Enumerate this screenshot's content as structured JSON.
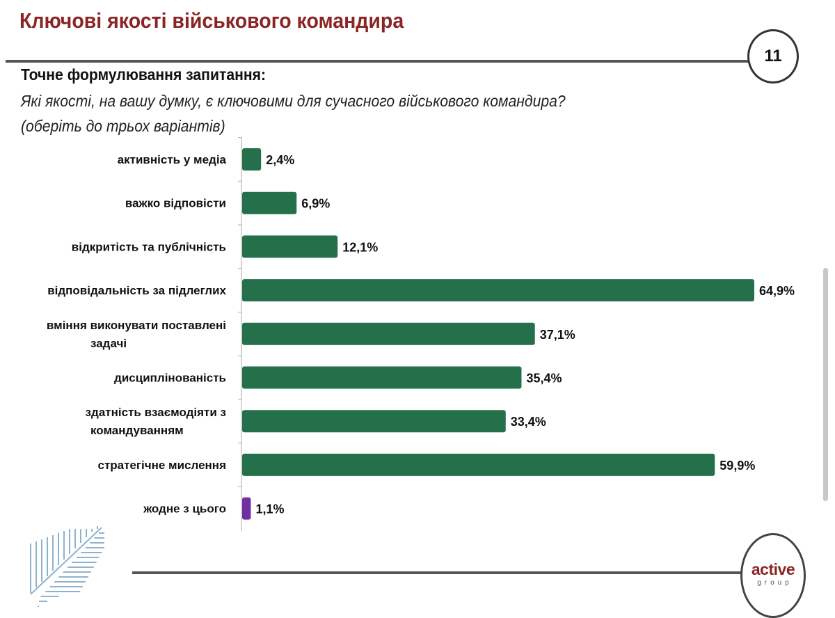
{
  "header": {
    "title": "Ключові якості військового командира",
    "page_number": "11"
  },
  "question": {
    "heading": "Точне формулювання запитання:",
    "text": "Які якості, на вашу думку, є ключовими для сучасного військового командира?",
    "note": "(оберіть до трьох варіантів)"
  },
  "chart_data": {
    "type": "bar",
    "orientation": "horizontal",
    "unit": "%",
    "xlim": [
      0,
      70
    ],
    "grid": false,
    "categories": [
      "активність у медіа",
      "важко відповісти",
      "відкритість та публічність",
      "відповідальність за підлеглих",
      "вміння виконувати поставлені задачі",
      "дисциплінованість",
      "здатність взаємодіяти з командуванням",
      "стратегічне мислення",
      "жодне з цього"
    ],
    "values": [
      2.4,
      6.9,
      12.1,
      64.9,
      37.1,
      35.4,
      33.4,
      59.9,
      1.1
    ],
    "data_labels": [
      "2,4%",
      "6,9%",
      "12,1%",
      "64,9%",
      "37,1%",
      "35,4%",
      "33,4%",
      "59,9%",
      "1,1%"
    ],
    "colors": [
      "#24704a",
      "#24704a",
      "#24704a",
      "#24704a",
      "#24704a",
      "#24704a",
      "#24704a",
      "#24704a",
      "#7030a0"
    ]
  },
  "footer": {
    "logo_main": "active",
    "logo_sub": "group",
    "leaf_color": "#8fb3cc"
  }
}
